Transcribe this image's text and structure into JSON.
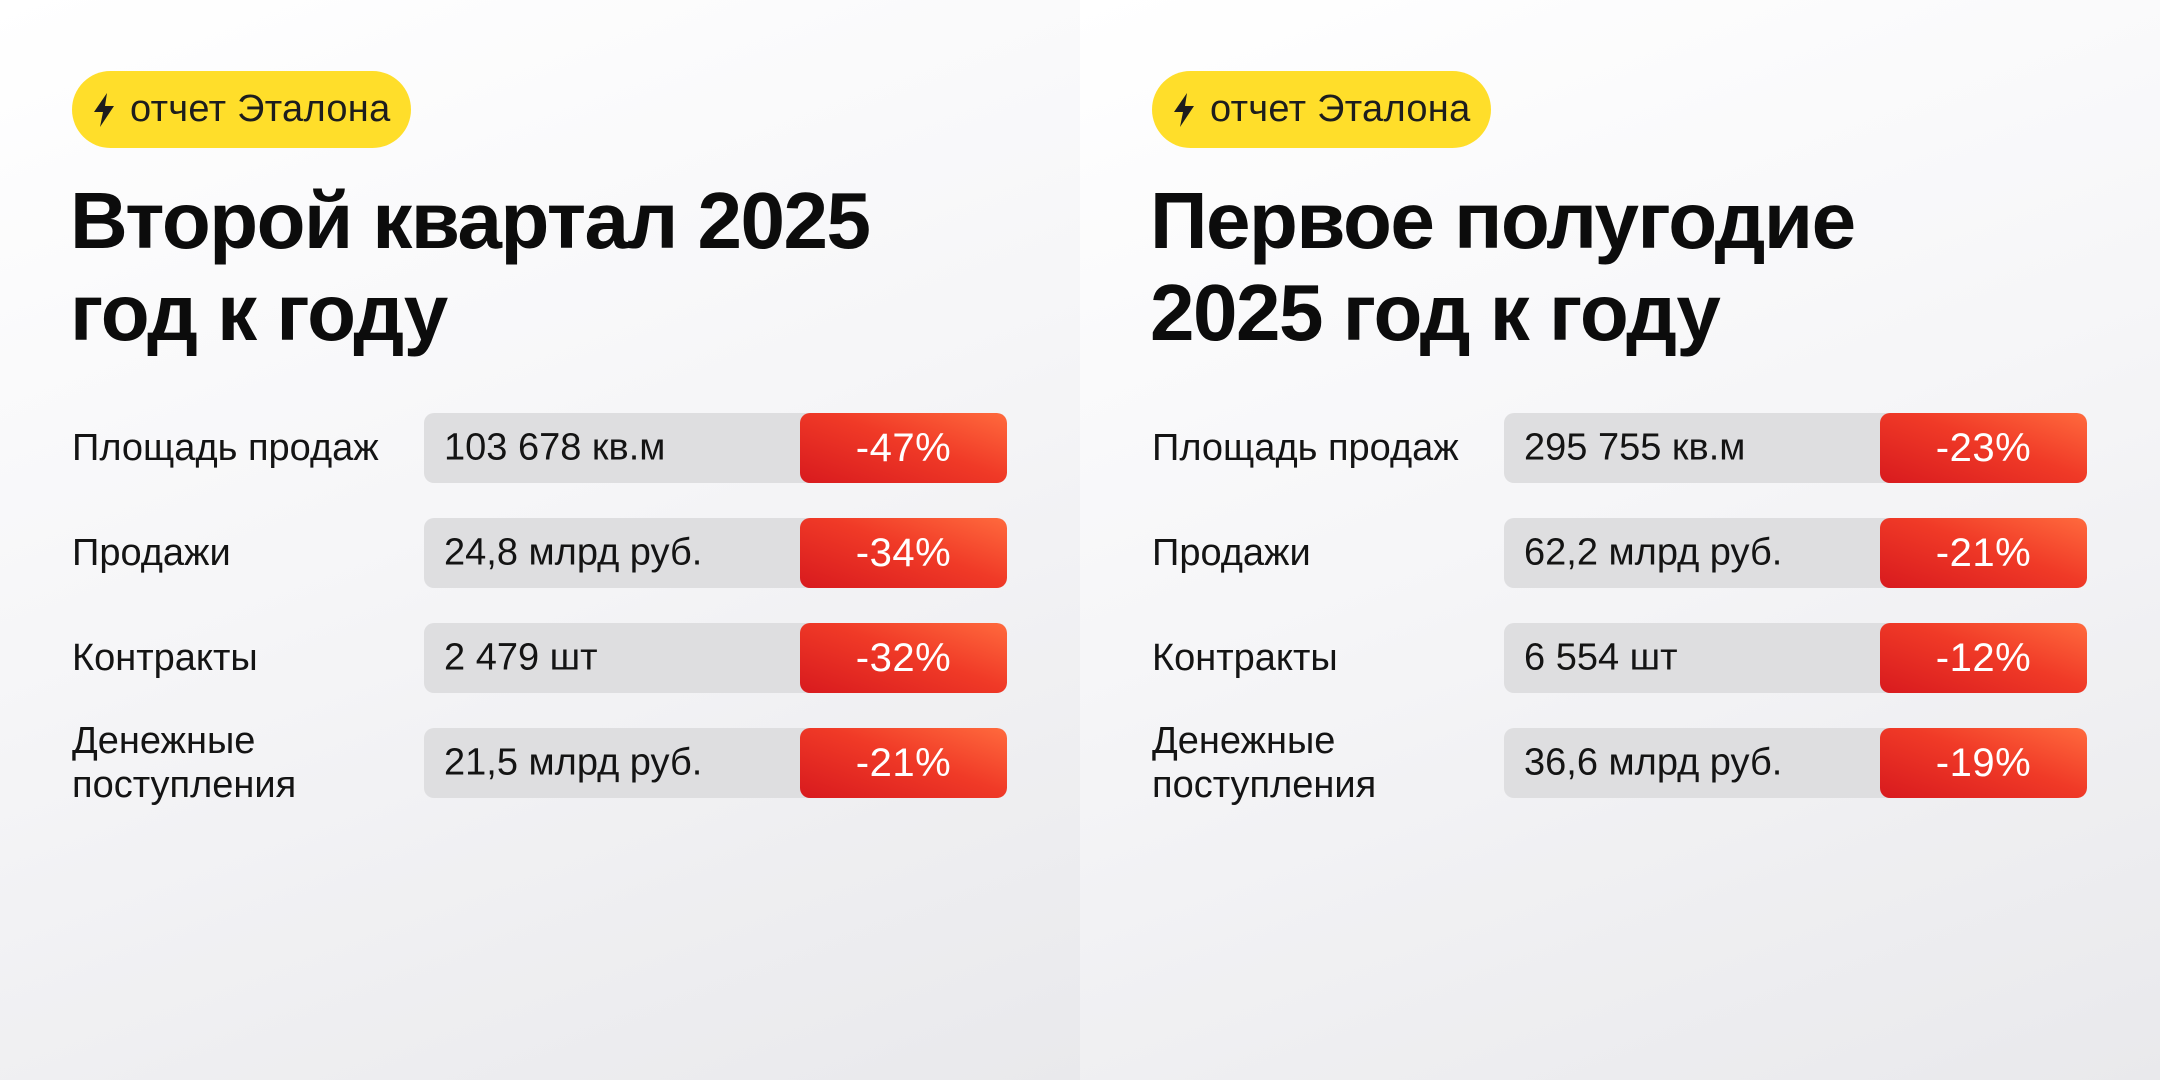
{
  "panels": [
    {
      "badge": "отчет Эталона",
      "title_line1": "Второй квартал 2025",
      "title_line2": "год к году",
      "rows": [
        {
          "label": "Площадь продаж",
          "value": "103 678 кв.м",
          "change": "-47%"
        },
        {
          "label": "Продажи",
          "value": "24,8 млрд руб.",
          "change": "-34%"
        },
        {
          "label": "Контракты",
          "value": "2 479 шт",
          "change": "-32%"
        },
        {
          "label_line1": "Денежные",
          "label_line2": "поступления",
          "value": "21,5 млрд руб.",
          "change": "-21%"
        }
      ]
    },
    {
      "badge": "отчет Эталона",
      "title_line1": "Первое полугодие",
      "title_line2": "2025 год к году",
      "rows": [
        {
          "label": "Площадь продаж",
          "value": "295 755 кв.м",
          "change": "-23%"
        },
        {
          "label": "Продажи",
          "value": "62,2 млрд руб.",
          "change": "-21%"
        },
        {
          "label": "Контракты",
          "value": "6 554 шт",
          "change": "-12%"
        },
        {
          "label_line1": "Денежные",
          "label_line2": "поступления",
          "value": "36,6 млрд руб.",
          "change": "-19%"
        }
      ]
    }
  ],
  "colors": {
    "badge": "#ffde2a",
    "negative": "#e8281f",
    "value_bg": "#dedee0",
    "text": "#0c0c0c"
  },
  "icons": {
    "badge_icon": "lightning-bolt-icon"
  }
}
